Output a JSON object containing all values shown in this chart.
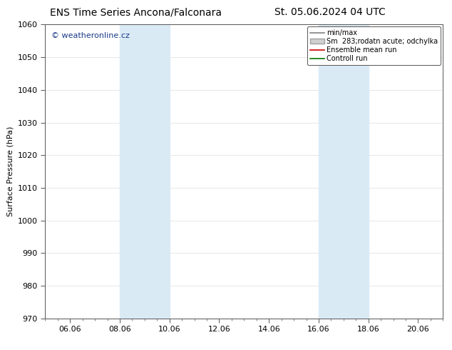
{
  "title_left": "ENS Time Series Ancona/Falconara",
  "title_right": "St. 05.06.2024 04 UTC",
  "ylabel": "Surface Pressure (hPa)",
  "ylim": [
    970,
    1060
  ],
  "yticks": [
    970,
    980,
    990,
    1000,
    1010,
    1020,
    1030,
    1040,
    1050,
    1060
  ],
  "xlim": [
    0,
    16
  ],
  "xtick_labels": [
    "06.06",
    "08.06",
    "10.06",
    "12.06",
    "14.06",
    "16.06",
    "18.06",
    "20.06"
  ],
  "xtick_positions": [
    1,
    3,
    5,
    7,
    9,
    11,
    13,
    15
  ],
  "shaded_regions": [
    {
      "x_start": 3,
      "x_end": 5
    },
    {
      "x_start": 11,
      "x_end": 13
    }
  ],
  "shaded_color": "#daeaf5",
  "background_color": "#ffffff",
  "watermark_text": "© weatheronline.cz",
  "watermark_color": "#1a3a8a",
  "legend_items": [
    {
      "label": "min/max",
      "color": "#808080",
      "linestyle": "-",
      "linewidth": 1.2,
      "type": "line"
    },
    {
      "label": "Sm  283;rodatn acute; odchylka",
      "facecolor": "#d0d0d0",
      "edgecolor": "#a0a0a0",
      "type": "patch"
    },
    {
      "label": "Ensemble mean run",
      "color": "#cc0000",
      "linestyle": "-",
      "linewidth": 1.2,
      "type": "line"
    },
    {
      "label": "Controll run",
      "color": "#007700",
      "linestyle": "-",
      "linewidth": 1.2,
      "type": "line"
    }
  ],
  "grid_color": "#dddddd",
  "border_color": "#555555",
  "title_fontsize": 10,
  "ylabel_fontsize": 8,
  "tick_fontsize": 8,
  "legend_fontsize": 7,
  "watermark_fontsize": 8
}
